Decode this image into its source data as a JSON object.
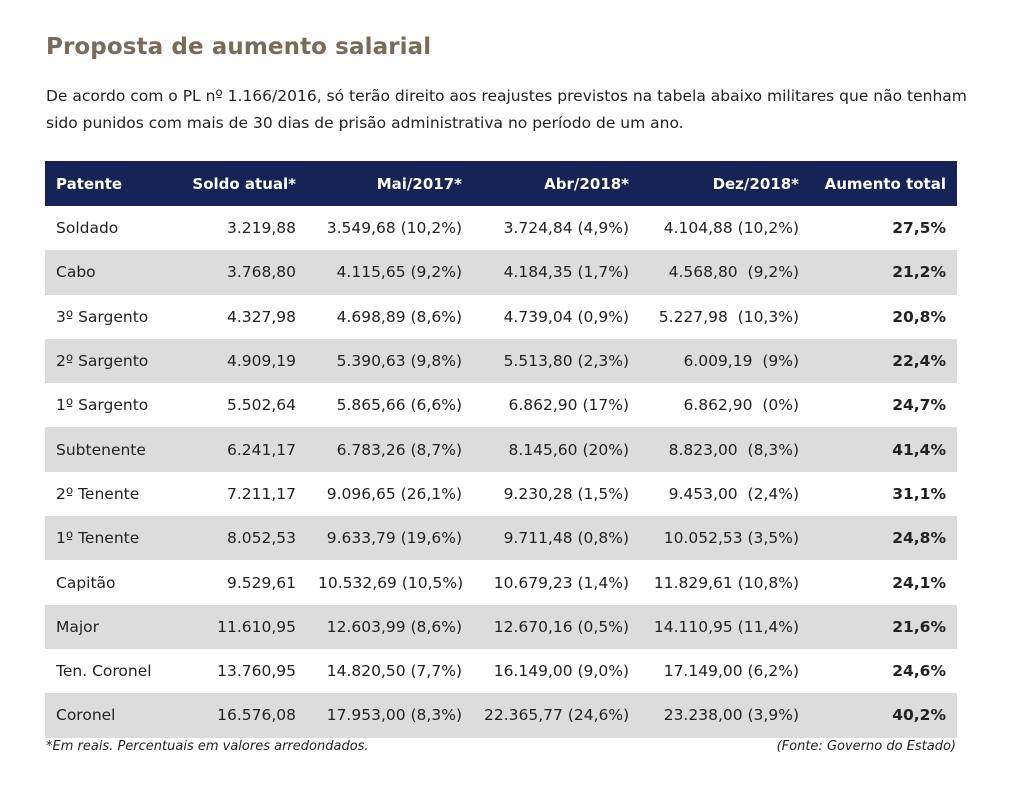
{
  "title": "Proposta de aumento salarial",
  "intro": "De acordo com o PL nº 1.166/2016, só terão direito aos reajustes previstos na tabela abaixo militares que não tenham sido punidos com mais de 30 dias de prisão administrativa no período de um ano.",
  "colors": {
    "header_bg": "#162356",
    "title": "#7a6a58",
    "stripe": "#dcdcdc"
  },
  "table": {
    "headers": [
      "Patente",
      "Soldo atual*",
      "Mai/2017*",
      "Abr/2018*",
      "Dez/2018*",
      "Aumento total"
    ],
    "rows": [
      [
        "Soldado",
        "3.219,88",
        "3.549,68 (10,2%)",
        "3.724,84 (4,9%)",
        "4.104,88 (10,2%)",
        "27,5%"
      ],
      [
        "Cabo",
        "3.768,80",
        "4.115,65 (9,2%)",
        "4.184,35 (1,7%)",
        "4.568,80  (9,2%)",
        "21,2%"
      ],
      [
        "3º Sargento",
        "4.327,98",
        "4.698,89 (8,6%)",
        "4.739,04 (0,9%)",
        "5.227,98  (10,3%)",
        "20,8%"
      ],
      [
        "2º Sargento",
        "4.909,19",
        "5.390,63 (9,8%)",
        "5.513,80 (2,3%)",
        "6.009,19  (9%)",
        "22,4%"
      ],
      [
        "1º Sargento",
        "5.502,64",
        "5.865,66 (6,6%)",
        "6.862,90 (17%)",
        "6.862,90  (0%)",
        "24,7%"
      ],
      [
        "Subtenente",
        "6.241,17",
        "6.783,26 (8,7%)",
        "8.145,60 (20%)",
        "8.823,00  (8,3%)",
        "41,4%"
      ],
      [
        "2º Tenente",
        "7.211,17",
        "9.096,65 (26,1%)",
        "9.230,28 (1,5%)",
        "9.453,00  (2,4%)",
        "31,1%"
      ],
      [
        "1º Tenente",
        "8.052,53",
        "9.633,79 (19,6%)",
        "9.711,48 (0,8%)",
        "10.052,53 (3,5%)",
        "24,8%"
      ],
      [
        "Capitão",
        "9.529,61",
        "10.532,69 (10,5%)",
        "10.679,23 (1,4%)",
        "11.829,61 (10,8%)",
        "24,1%"
      ],
      [
        "Major",
        "11.610,95",
        "12.603,99 (8,6%)",
        "12.670,16 (0,5%)",
        "14.110,95 (11,4%)",
        "21,6%"
      ],
      [
        "Ten. Coronel",
        "13.760,95",
        "14.820,50 (7,7%)",
        "16.149,00 (9,0%)",
        "17.149,00 (6,2%)",
        "24,6%"
      ],
      [
        "Coronel",
        "16.576,08",
        "17.953,00 (8,3%)",
        "22.365,77 (24,6%)",
        "23.238,00 (3,9%)",
        "40,2%"
      ]
    ]
  },
  "footnote": "*Em reais. Percentuais em valores arredondados.",
  "source": "(Fonte: Governo do Estado)"
}
